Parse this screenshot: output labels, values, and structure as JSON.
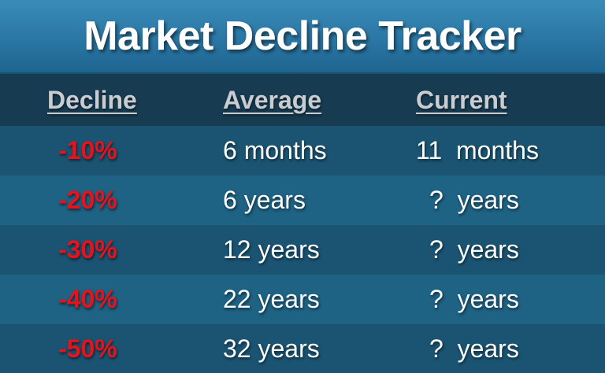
{
  "title": "Market Decline Tracker",
  "headers": {
    "decline": "Decline",
    "average": "Average",
    "current": "Current"
  },
  "rows": [
    {
      "decline": "-10%",
      "average": "6 months",
      "current": "11  months"
    },
    {
      "decline": "-20%",
      "average": "6 years",
      "current": "?  years"
    },
    {
      "decline": "-30%",
      "average": "12 years",
      "current": "?  years"
    },
    {
      "decline": "-40%",
      "average": "22 years",
      "current": "?  years"
    },
    {
      "decline": "-50%",
      "average": "32 years",
      "current": "?  years"
    }
  ],
  "colors": {
    "title_bar": "#2a76a4",
    "header_row": "#173c52",
    "row_dark": "#1a5472",
    "row_light": "#1e6284",
    "decline_text": "#e8121d",
    "header_text": "#c9cdd1"
  }
}
